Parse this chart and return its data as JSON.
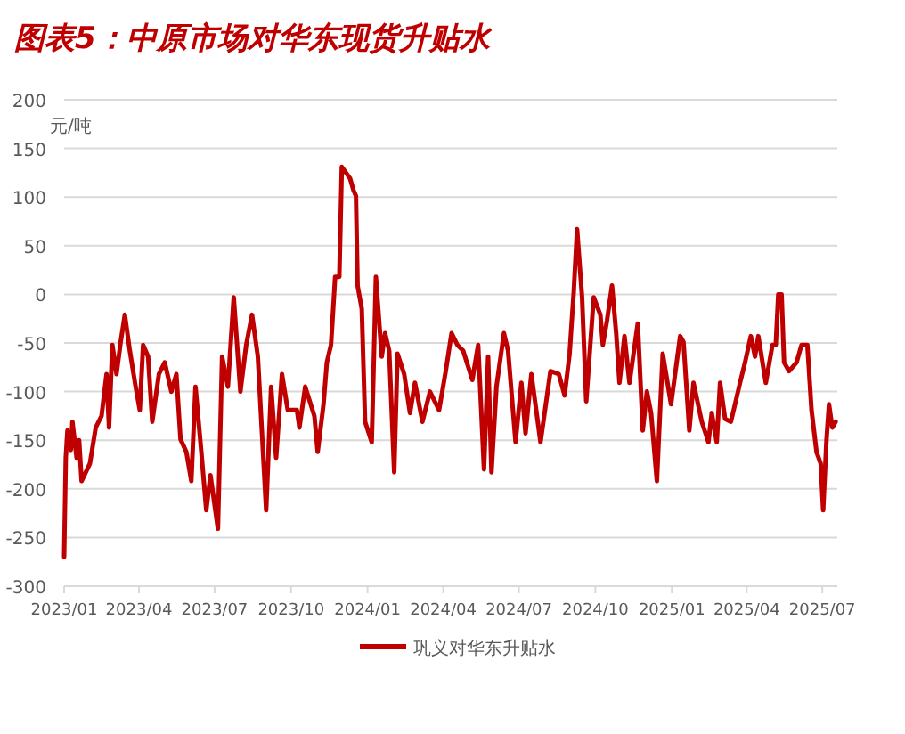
{
  "chart_data": {
    "type": "line",
    "title": "图表5：中原市场对华东现货升贴水",
    "ylabel": "元/吨",
    "xlim": [
      "2023-01-01",
      "2025-07-19"
    ],
    "ylim": [
      -300,
      200
    ],
    "xticks": [
      {
        "value": "2023-01-01",
        "label": "2023/01"
      },
      {
        "value": "2023-04-01",
        "label": "2023/04"
      },
      {
        "value": "2023-07-01",
        "label": "2023/07"
      },
      {
        "value": "2023-10-01",
        "label": "2023/10"
      },
      {
        "value": "2024-01-01",
        "label": "2024/01"
      },
      {
        "value": "2024-04-01",
        "label": "2024/04"
      },
      {
        "value": "2024-07-01",
        "label": "2024/07"
      },
      {
        "value": "2024-10-01",
        "label": "2024/10"
      },
      {
        "value": "2025-01-01",
        "label": "2025/01"
      },
      {
        "value": "2025-04-01",
        "label": "2025/04"
      },
      {
        "value": "2025-07-01",
        "label": "2025/07"
      }
    ],
    "yticks": [
      -300,
      -250,
      -200,
      -150,
      -100,
      -50,
      0,
      50,
      100,
      150,
      200
    ],
    "grid": "y",
    "legend": "bottom",
    "x": [
      "2023-01-01",
      "2023-01-03",
      "2023-01-05",
      "2023-01-09",
      "2023-01-11",
      "2023-01-16",
      "2023-01-19",
      "2023-01-22",
      "2023-02-01",
      "2023-02-08",
      "2023-02-15",
      "2023-02-21",
      "2023-02-24",
      "2023-02-28",
      "2023-03-05",
      "2023-03-10",
      "2023-03-15",
      "2023-03-21",
      "2023-03-28",
      "2023-04-02",
      "2023-04-06",
      "2023-04-12",
      "2023-04-17",
      "2023-04-25",
      "2023-05-02",
      "2023-05-10",
      "2023-05-16",
      "2023-05-21",
      "2023-05-28",
      "2023-06-03",
      "2023-06-08",
      "2023-06-15",
      "2023-06-21",
      "2023-06-26",
      "2023-07-05",
      "2023-07-10",
      "2023-07-17",
      "2023-07-24",
      "2023-08-01",
      "2023-08-08",
      "2023-08-15",
      "2023-08-22",
      "2023-09-01",
      "2023-09-07",
      "2023-09-13",
      "2023-09-20",
      "2023-09-27",
      "2023-10-08",
      "2023-10-11",
      "2023-10-18",
      "2023-10-29",
      "2023-11-02",
      "2023-11-09",
      "2023-11-13",
      "2023-11-18",
      "2023-11-23",
      "2023-11-28",
      "2023-12-01",
      "2023-12-06",
      "2023-12-11",
      "2023-12-15",
      "2023-12-18",
      "2023-12-20",
      "2023-12-25",
      "2023-12-29",
      "2024-01-06",
      "2024-01-11",
      "2024-01-18",
      "2024-01-22",
      "2024-01-27",
      "2024-02-02",
      "2024-02-06",
      "2024-02-14",
      "2024-02-21",
      "2024-02-27",
      "2024-03-07",
      "2024-03-16",
      "2024-03-27",
      "2024-04-04",
      "2024-04-11",
      "2024-04-18",
      "2024-04-25",
      "2024-05-06",
      "2024-05-13",
      "2024-05-20",
      "2024-05-25",
      "2024-05-29",
      "2024-06-04",
      "2024-06-13",
      "2024-06-18",
      "2024-06-27",
      "2024-07-04",
      "2024-07-09",
      "2024-07-16",
      "2024-07-27",
      "2024-08-08",
      "2024-08-18",
      "2024-08-25",
      "2024-08-31",
      "2024-09-05",
      "2024-09-09",
      "2024-09-15",
      "2024-09-20",
      "2024-09-29",
      "2024-10-07",
      "2024-10-10",
      "2024-10-15",
      "2024-10-21",
      "2024-10-26",
      "2024-10-30",
      "2024-11-05",
      "2024-11-11",
      "2024-11-21",
      "2024-11-27",
      "2024-12-02",
      "2024-12-07",
      "2024-12-14",
      "2024-12-21",
      "2024-12-31",
      "2025-01-11",
      "2025-01-15",
      "2025-01-22",
      "2025-01-27",
      "2025-02-06",
      "2025-02-14",
      "2025-02-18",
      "2025-02-24",
      "2025-02-28",
      "2025-03-06",
      "2025-03-13",
      "2025-03-24",
      "2025-03-30",
      "2025-04-06",
      "2025-04-11",
      "2025-04-15",
      "2025-04-24",
      "2025-05-02",
      "2025-05-06",
      "2025-05-09",
      "2025-05-13",
      "2025-05-16",
      "2025-05-22",
      "2025-05-31",
      "2025-06-06",
      "2025-06-13",
      "2025-06-18",
      "2025-06-24",
      "2025-06-29",
      "2025-07-02",
      "2025-07-06",
      "2025-07-09",
      "2025-07-13",
      "2025-07-17"
    ],
    "series": [
      {
        "name": "巩义对华东升贴水",
        "color": "#c00000",
        "values": [
          -270,
          -168,
          -140,
          -160,
          -131,
          -168,
          -150,
          -192,
          -174,
          -137,
          -125,
          -82,
          -137,
          -52,
          -82,
          -49,
          -21,
          -58,
          -95,
          -119,
          -52,
          -64,
          -131,
          -82,
          -70,
          -100,
          -82,
          -149,
          -162,
          -192,
          -95,
          -162,
          -222,
          -186,
          -241,
          -64,
          -95,
          -3,
          -100,
          -52,
          -21,
          -64,
          -222,
          -95,
          -168,
          -82,
          -119,
          -119,
          -137,
          -95,
          -125,
          -162,
          -113,
          -70,
          -52,
          18,
          18,
          131,
          125,
          119,
          107,
          101,
          9,
          -15,
          -131,
          -152,
          18,
          -64,
          -40,
          -58,
          -183,
          -61,
          -82,
          -122,
          -91,
          -131,
          -100,
          -119,
          -79,
          -40,
          -52,
          -58,
          -88,
          -52,
          -180,
          -64,
          -183,
          -95,
          -40,
          -58,
          -152,
          -91,
          -143,
          -82,
          -152,
          -79,
          -82,
          -104,
          -61,
          3,
          67,
          -3,
          -110,
          -3,
          -21,
          -52,
          -27,
          9,
          -40,
          -91,
          -43,
          -91,
          -30,
          -140,
          -100,
          -122,
          -192,
          -61,
          -113,
          -43,
          -49,
          -140,
          -91,
          -131,
          -152,
          -122,
          -152,
          -91,
          -128,
          -131,
          -91,
          -70,
          -43,
          -64,
          -43,
          -91,
          -52,
          -52,
          0,
          0,
          -70,
          -79,
          -70,
          -52,
          -52,
          -119,
          -162,
          -174,
          -222,
          -150,
          -113,
          -137,
          -131
        ]
      }
    ]
  }
}
